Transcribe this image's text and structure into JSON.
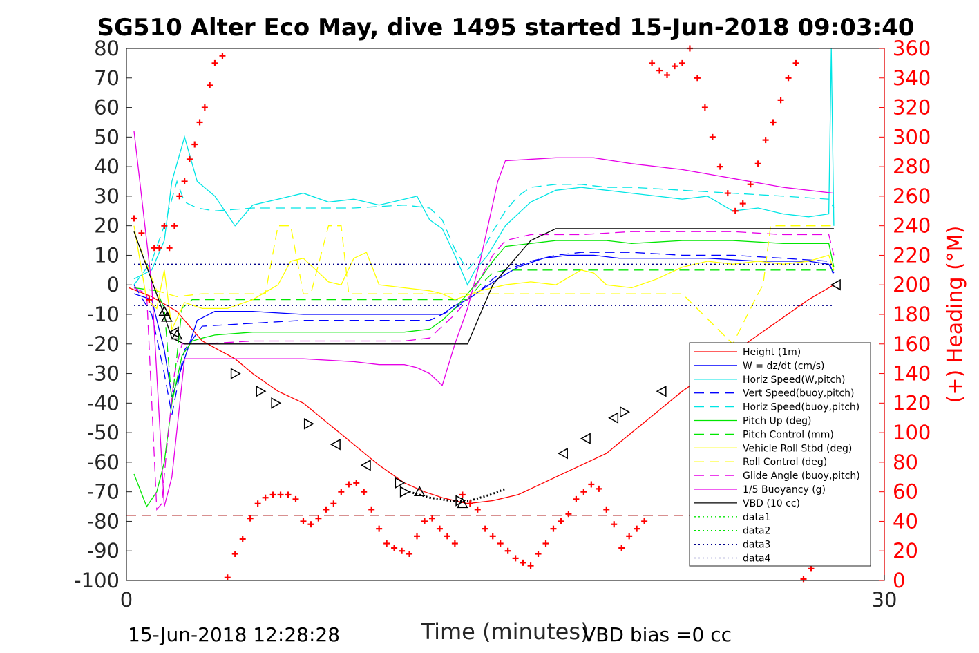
{
  "chart_data": {
    "type": "line",
    "title": "SG510 Alter Eco May, dive 1495 started 15-Jun-2018 09:03:40",
    "xlabel": "Time (minutes)",
    "ylabel_right": "(+) Heading (°M)",
    "xlim": [
      0,
      30
    ],
    "ylim": [
      -100,
      80
    ],
    "ylim_right": [
      0,
      360
    ],
    "x_ticks": [
      "0",
      "30"
    ],
    "y_ticks": [
      "80",
      "70",
      "60",
      "50",
      "40",
      "30",
      "20",
      "10",
      "0",
      "-10",
      "-20",
      "-30",
      "-40",
      "-50",
      "-60",
      "-70",
      "-80",
      "-90",
      "-100"
    ],
    "y_ticks_right": [
      "360",
      "340",
      "320",
      "300",
      "280",
      "260",
      "240",
      "220",
      "200",
      "180",
      "160",
      "140",
      "120",
      "100",
      "80",
      "60",
      "40",
      "20",
      "0"
    ],
    "footer_left": "15-Jun-2018 12:28:28",
    "footer_right": "VBD bias =0 cc",
    "grid": false,
    "legend_position": "bottom-right",
    "reference_line_y": -78,
    "series": [
      {
        "name": "Height (1m)",
        "color": "#ff0000",
        "style": "solid",
        "x": [
          0.1,
          1.0,
          2.0,
          3.0,
          4.3,
          5.0,
          6.0,
          7.0,
          8.0,
          9.0,
          10.0,
          11.0,
          11.8,
          12.5,
          13.5,
          14.5,
          15.5,
          16.5,
          17.5,
          19.0,
          20.0,
          21.0,
          22.0,
          23.0,
          24.0,
          25.0,
          26.0,
          27.0,
          28.0
        ],
        "y": [
          -1,
          -4,
          -9,
          -19,
          -25,
          -30,
          -36,
          -40,
          -47,
          -54,
          -61,
          -67,
          -70,
          -72,
          -74,
          -73,
          -71,
          -67,
          -63,
          -57,
          -50,
          -43,
          -36,
          -30,
          -23,
          -17,
          -11,
          -5,
          0
        ]
      },
      {
        "name": "W = dz/dt (cm/s)",
        "color": "#0000ff",
        "style": "solid",
        "x": [
          0.3,
          1.0,
          1.5,
          1.8,
          2.3,
          2.8,
          3.5,
          5,
          7,
          9,
          11,
          12.5,
          13,
          13.5,
          14,
          14.7,
          15.5,
          16.5,
          17.5,
          18.5,
          19.5,
          21,
          23,
          25,
          27,
          27.8,
          28.0
        ],
        "y": [
          -3,
          -5,
          -22,
          -38,
          -25,
          -12,
          -9,
          -9,
          -10,
          -10,
          -10,
          -10,
          -7,
          -5,
          -2,
          2,
          6,
          9,
          10,
          10,
          9,
          9,
          9,
          8,
          8,
          7,
          4
        ]
      },
      {
        "name": "Horiz Speed(W,pitch)",
        "color": "#00e5e5",
        "style": "solid",
        "x": [
          0.3,
          1.0,
          1.5,
          1.8,
          2.3,
          2.8,
          3.5,
          4.3,
          5.0,
          6.0,
          7.0,
          8.0,
          9.0,
          10.0,
          11.0,
          11.5,
          12.0,
          12.5,
          13.0,
          13.5,
          13.8,
          14.3,
          15.0,
          16.0,
          17.0,
          18.0,
          19.0,
          20.0,
          21.0,
          22.0,
          23.0,
          24.0,
          25.0,
          26.0,
          27.0,
          27.8,
          27.9,
          28.0
        ],
        "y": [
          2,
          5,
          15,
          35,
          50,
          35,
          30,
          20,
          27,
          29,
          31,
          28,
          29,
          27,
          29,
          30,
          22,
          19,
          10,
          0,
          5,
          10,
          20,
          28,
          32,
          33,
          32,
          31,
          30,
          29,
          30,
          25,
          26,
          24,
          23,
          24,
          80,
          20
        ]
      },
      {
        "name": "Vert Speed(buoy,pitch)",
        "color": "#0000ff",
        "style": "dashed",
        "x": [
          0.3,
          1.0,
          1.5,
          1.8,
          2.3,
          3.0,
          5,
          7,
          9,
          11,
          12.0,
          12.5,
          13.0,
          13.5,
          14.0,
          14.5,
          15.0,
          16.0,
          17.0,
          18.0,
          19.0,
          20.0,
          22.0,
          24.0,
          26.0,
          27.8,
          28.0
        ],
        "y": [
          0,
          -10,
          -30,
          -44,
          -22,
          -14,
          -13,
          -12,
          -12,
          -12,
          -12,
          -10,
          -8,
          -5,
          -2,
          2,
          5,
          8,
          10,
          11,
          11,
          11,
          10,
          10,
          9,
          8,
          3
        ]
      },
      {
        "name": "Horiz Speed(buoy,pitch)",
        "color": "#00e5e5",
        "style": "dashed",
        "x": [
          0.3,
          1.0,
          1.5,
          2.0,
          2.3,
          2.8,
          3.5,
          5,
          7,
          9,
          11,
          12.0,
          12.5,
          13.0,
          13.5,
          14.0,
          14.5,
          15.0,
          15.5,
          16.0,
          17.0,
          18.0,
          19.0,
          20.0,
          22.0,
          24.0,
          26.0,
          27.8,
          28.0
        ],
        "y": [
          0,
          8,
          20,
          35,
          28,
          26,
          25,
          26,
          26,
          26,
          27,
          26,
          22,
          12,
          5,
          10,
          18,
          25,
          30,
          33,
          34,
          34,
          33,
          33,
          32,
          31,
          30,
          29,
          26
        ]
      },
      {
        "name": "Pitch Up (deg)",
        "color": "#00e600",
        "style": "solid",
        "x": [
          0.3,
          0.8,
          1.2,
          1.5,
          1.8,
          2.2,
          2.6,
          3.0,
          3.5,
          5,
          7,
          9,
          11,
          12.0,
          12.5,
          13.0,
          13.5,
          14.0,
          14.5,
          15.0,
          16.0,
          17.0,
          18.0,
          19.0,
          20.0,
          22.0,
          24.0,
          26.0,
          27.8,
          28.0
        ],
        "y": [
          -64,
          -75,
          -70,
          -60,
          -40,
          -24,
          -19,
          -18,
          -17,
          -16,
          -16,
          -16,
          -16,
          -15,
          -12,
          -8,
          -3,
          2,
          8,
          13,
          14,
          15,
          15,
          15,
          14,
          15,
          15,
          14,
          14,
          6
        ]
      },
      {
        "name": "Pitch Control (mm)",
        "color": "#00e600",
        "style": "dashed",
        "x": [
          0.3,
          1.2,
          1.5,
          1.8,
          2.2,
          2.6,
          3.0,
          5,
          7,
          9,
          11,
          12.0,
          13.5,
          14.0,
          14.5,
          15.0,
          16,
          20,
          24,
          28
        ],
        "y": [
          -1,
          -2,
          -8,
          -40,
          -8,
          -5,
          -5,
          -5,
          -5,
          -5,
          -5,
          -5,
          -5,
          0,
          4,
          5,
          5,
          5,
          5,
          5
        ]
      },
      {
        "name": "Vehicle Roll Stbd (deg)",
        "color": "#ffff00",
        "style": "solid",
        "x": [
          0.3,
          0.8,
          1.2,
          1.5,
          1.8,
          2.3,
          3.0,
          4.0,
          5.0,
          6.0,
          6.5,
          7.0,
          8.0,
          8.5,
          9.0,
          9.5,
          10.0,
          11.0,
          12.0,
          12.5,
          13.0,
          14.0,
          15.0,
          16.0,
          17.0,
          18.0,
          18.5,
          19.0,
          20.0,
          21.0,
          22.0,
          23.0,
          24.0,
          25.0,
          26.0,
          27.0,
          27.8,
          28.0
        ],
        "y": [
          20,
          -5,
          -8,
          5,
          -15,
          -6,
          -8,
          -8,
          -5,
          0,
          8,
          9,
          1,
          0,
          9,
          11,
          0,
          -1,
          -2,
          -3,
          -5,
          -2,
          0,
          1,
          0,
          5,
          4,
          0,
          -1,
          2,
          6,
          8,
          7,
          8,
          7,
          8,
          10,
          5
        ]
      },
      {
        "name": "Roll Control (deg)",
        "color": "#ffff00",
        "style": "dashed",
        "x": [
          0.3,
          1.2,
          2.0,
          3.0,
          4.0,
          5.0,
          5.5,
          6.0,
          6.5,
          7.0,
          7.3,
          8.0,
          8.5,
          8.8,
          9.0,
          9.5,
          10.0,
          11.0,
          12.0,
          13.0,
          14.0,
          15.0,
          16.0,
          17.0,
          18.0,
          19.0,
          20.0,
          22.0,
          24.0,
          25.0,
          25.2,
          25.5,
          27.0,
          28.0
        ],
        "y": [
          18,
          -2,
          -4,
          -3,
          -3,
          -3,
          -3,
          20,
          20,
          -3,
          -3,
          20,
          20,
          -3,
          -3,
          -3,
          -3,
          -3,
          -3,
          -3,
          -3,
          -3,
          -3,
          -3,
          -3,
          -3,
          -3,
          -3,
          -20,
          -3,
          0,
          20,
          20,
          20
        ]
      },
      {
        "name": "Glide Angle (buoy,pitch)",
        "color": "#e600e6",
        "style": "dashed",
        "x": [
          0.3,
          0.8,
          1.2,
          1.4,
          1.6,
          1.9,
          2.2,
          2.6,
          3.0,
          5,
          7,
          9,
          11,
          12.0,
          12.5,
          13.0,
          13.5,
          14.0,
          14.5,
          15.0,
          16,
          18,
          20,
          22,
          24,
          26,
          27.8,
          28.0
        ],
        "y": [
          -1,
          -3,
          -76,
          -74,
          -55,
          -30,
          -20,
          -20,
          -20,
          -19,
          -19,
          -19,
          -19,
          -18,
          -14,
          -10,
          -5,
          2,
          10,
          15,
          17,
          17,
          18,
          18,
          18,
          17,
          17,
          10
        ]
      },
      {
        "name": "1/5 Buoyancy (g)",
        "color": "#e600e6",
        "style": "solid",
        "x": [
          0.3,
          1.0,
          1.5,
          1.8,
          2.3,
          3.0,
          5.0,
          7.0,
          9.0,
          10.0,
          11.0,
          11.5,
          12.0,
          12.5,
          13.0,
          13.5,
          14.0,
          14.7,
          15.0,
          17.0,
          18.5,
          20,
          22,
          24,
          26,
          28.0
        ],
        "y": [
          52,
          0,
          -75,
          -65,
          -25,
          -25,
          -25,
          -25,
          -26,
          -27,
          -27,
          -28,
          -30,
          -34,
          -20,
          -8,
          8,
          35,
          42,
          43,
          43,
          41,
          39,
          36,
          33,
          31
        ]
      },
      {
        "name": "VBD (10 cc)",
        "color": "#000000",
        "style": "solid",
        "x": [
          0.3,
          1.4,
          1.8,
          2.3,
          3.0,
          5.0,
          7.0,
          9.0,
          11.0,
          12.5,
          13.5,
          14.5,
          15.0,
          16.0,
          17.0,
          19.0,
          22.0,
          25.0,
          28.0
        ],
        "y": [
          18,
          -8,
          -18,
          -20,
          -20,
          -20,
          -20,
          -20,
          -20,
          -20,
          -20,
          0,
          5,
          15,
          19,
          19,
          19,
          19,
          19
        ]
      },
      {
        "name": "data1",
        "color": "#00e600",
        "style": "dotted",
        "x": [],
        "y": []
      },
      {
        "name": "data2",
        "color": "#00e600",
        "style": "dotted",
        "x": [],
        "y": []
      },
      {
        "name": "data3",
        "color": "#00008b",
        "style": "dotted",
        "x": [
          0.3,
          28.0
        ],
        "y": [
          7,
          7
        ]
      },
      {
        "name": "data4",
        "color": "#00008b",
        "style": "dotted",
        "x": [
          0.3,
          28.0
        ],
        "y": [
          -7,
          -7
        ]
      }
    ],
    "extra_lines": [
      {
        "color": "#b22222",
        "style": "dashed",
        "x": [
          0.0,
          28.0
        ],
        "y": [
          -78,
          -78
        ]
      }
    ],
    "triangle_markers": {
      "color": "#000000",
      "points": [
        {
          "x": 1.5,
          "y": -9,
          "dir": "up"
        },
        {
          "x": 1.6,
          "y": -11,
          "dir": "up"
        },
        {
          "x": 1.9,
          "y": -16,
          "dir": "left"
        },
        {
          "x": 2.0,
          "y": -17,
          "dir": "up"
        },
        {
          "x": 4.3,
          "y": -30,
          "dir": "right"
        },
        {
          "x": 5.3,
          "y": -36,
          "dir": "right"
        },
        {
          "x": 5.9,
          "y": -40,
          "dir": "right"
        },
        {
          "x": 7.2,
          "y": -47,
          "dir": "right"
        },
        {
          "x": 8.3,
          "y": -54,
          "dir": "left"
        },
        {
          "x": 9.5,
          "y": -61,
          "dir": "left"
        },
        {
          "x": 10.8,
          "y": -67,
          "dir": "right"
        },
        {
          "x": 11.0,
          "y": -70,
          "dir": "right"
        },
        {
          "x": 11.6,
          "y": -70,
          "dir": "up"
        },
        {
          "x": 13.3,
          "y": -74,
          "dir": "up"
        },
        {
          "x": 13.2,
          "y": -73,
          "dir": "right"
        },
        {
          "x": 17.3,
          "y": -57,
          "dir": "left"
        },
        {
          "x": 18.2,
          "y": -52,
          "dir": "left"
        },
        {
          "x": 19.3,
          "y": -45,
          "dir": "left"
        },
        {
          "x": 19.7,
          "y": -43,
          "dir": "right"
        },
        {
          "x": 21.2,
          "y": -36,
          "dir": "left"
        },
        {
          "x": 28.1,
          "y": 0,
          "dir": "left"
        }
      ]
    },
    "dotted_segment": {
      "color": "#000000",
      "x": [
        11.2,
        12.0,
        12.8,
        13.6,
        14.4,
        15.0
      ],
      "y": [
        -70,
        -72,
        -73,
        -73,
        -71,
        -69
      ]
    },
    "heading_markers": {
      "color": "#ff0000",
      "marker": "+",
      "x": [
        0.3,
        0.6,
        0.9,
        1.1,
        1.3,
        1.5,
        1.7,
        1.9,
        2.1,
        2.3,
        2.5,
        2.7,
        2.9,
        3.1,
        3.3,
        3.5,
        3.8,
        4.0,
        4.3,
        4.6,
        4.9,
        5.2,
        5.5,
        5.8,
        6.1,
        6.4,
        6.7,
        7.0,
        7.3,
        7.6,
        7.9,
        8.2,
        8.5,
        8.8,
        9.1,
        9.4,
        9.7,
        10.0,
        10.3,
        10.6,
        10.9,
        11.2,
        11.5,
        11.8,
        12.1,
        12.4,
        12.7,
        13.0,
        13.3,
        13.6,
        13.9,
        14.2,
        14.5,
        14.8,
        15.1,
        15.4,
        15.7,
        16.0,
        16.3,
        16.6,
        16.9,
        17.2,
        17.5,
        17.8,
        18.1,
        18.4,
        18.7,
        19.0,
        19.3,
        19.6,
        19.9,
        20.2,
        20.5,
        20.8,
        21.1,
        21.4,
        21.7,
        22.0,
        22.3,
        22.6,
        22.9,
        23.2,
        23.5,
        23.8,
        24.1,
        24.4,
        24.7,
        25.0,
        25.3,
        25.6,
        25.9,
        26.2,
        26.5,
        26.8,
        27.1
      ],
      "y": [
        245,
        235,
        190,
        225,
        225,
        240,
        225,
        240,
        260,
        270,
        285,
        295,
        310,
        320,
        335,
        350,
        355,
        2,
        18,
        28,
        42,
        52,
        56,
        58,
        58,
        58,
        55,
        40,
        38,
        42,
        48,
        52,
        60,
        65,
        66,
        60,
        48,
        35,
        25,
        22,
        20,
        18,
        30,
        40,
        42,
        35,
        30,
        25,
        58,
        52,
        48,
        35,
        30,
        25,
        20,
        15,
        12,
        10,
        18,
        25,
        35,
        40,
        45,
        55,
        60,
        65,
        62,
        48,
        38,
        22,
        30,
        35,
        40,
        350,
        345,
        342,
        348,
        350,
        360,
        340,
        320,
        300,
        280,
        262,
        250,
        255,
        268,
        282,
        298,
        310,
        325,
        340,
        350,
        1,
        8
      ]
    }
  }
}
